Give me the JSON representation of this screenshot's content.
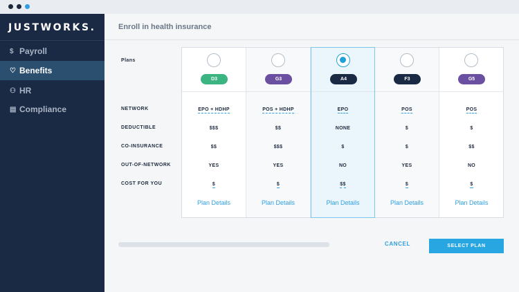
{
  "window": {
    "title": ""
  },
  "sidebar": {
    "logo": "JUSTWORKS.",
    "items": [
      {
        "icon": "dollar-icon",
        "glyph": "$",
        "label": "Payroll"
      },
      {
        "icon": "heart-icon",
        "glyph": "♡",
        "label": "Benefits"
      },
      {
        "icon": "people-icon",
        "glyph": "⚇",
        "label": "HR"
      },
      {
        "icon": "clipboard-icon",
        "glyph": "▤",
        "label": "Compliance"
      }
    ],
    "active": "Benefits"
  },
  "header": {
    "title": "Enroll in health insurance"
  },
  "table": {
    "plans_label": "Plans",
    "row_labels": [
      "NETWORK",
      "DEDUCTIBLE",
      "CO-INSURANCE",
      "OUT-OF-NETWORK",
      "COST FOR YOU"
    ],
    "plans": [
      {
        "name": "D3",
        "color": "#3bb482",
        "selected": false,
        "network": "EPO + HDHP",
        "deductible": "$$$",
        "coinsurance": "$$",
        "out_of_network": "YES",
        "cost": "$",
        "details": "Plan Details"
      },
      {
        "name": "G3",
        "color": "#6b4fa0",
        "selected": false,
        "network": "POS + HDHP",
        "deductible": "$$",
        "coinsurance": "$$$",
        "out_of_network": "YES",
        "cost": "$",
        "details": "Plan Details"
      },
      {
        "name": "A4",
        "color": "#1b2a44",
        "selected": true,
        "network": "EPO",
        "deductible": "NONE",
        "coinsurance": "$",
        "out_of_network": "NO",
        "cost": "$$",
        "details": "Plan Details"
      },
      {
        "name": "F3",
        "color": "#1b2a44",
        "selected": false,
        "network": "POS",
        "deductible": "$",
        "coinsurance": "$",
        "out_of_network": "YES",
        "cost": "$",
        "details": "Plan Details"
      },
      {
        "name": "G5",
        "color": "#6b4fa0",
        "selected": false,
        "network": "POS",
        "deductible": "$",
        "coinsurance": "$$",
        "out_of_network": "NO",
        "cost": "$",
        "details": "Plan Details"
      }
    ]
  },
  "footer": {
    "cancel_label": "CANCEL",
    "select_label": "SELECT PLAN"
  },
  "colors": {
    "accent": "#27a6e1",
    "sidebar": "#1b2a44",
    "active_nav": "#2b4f6f"
  }
}
